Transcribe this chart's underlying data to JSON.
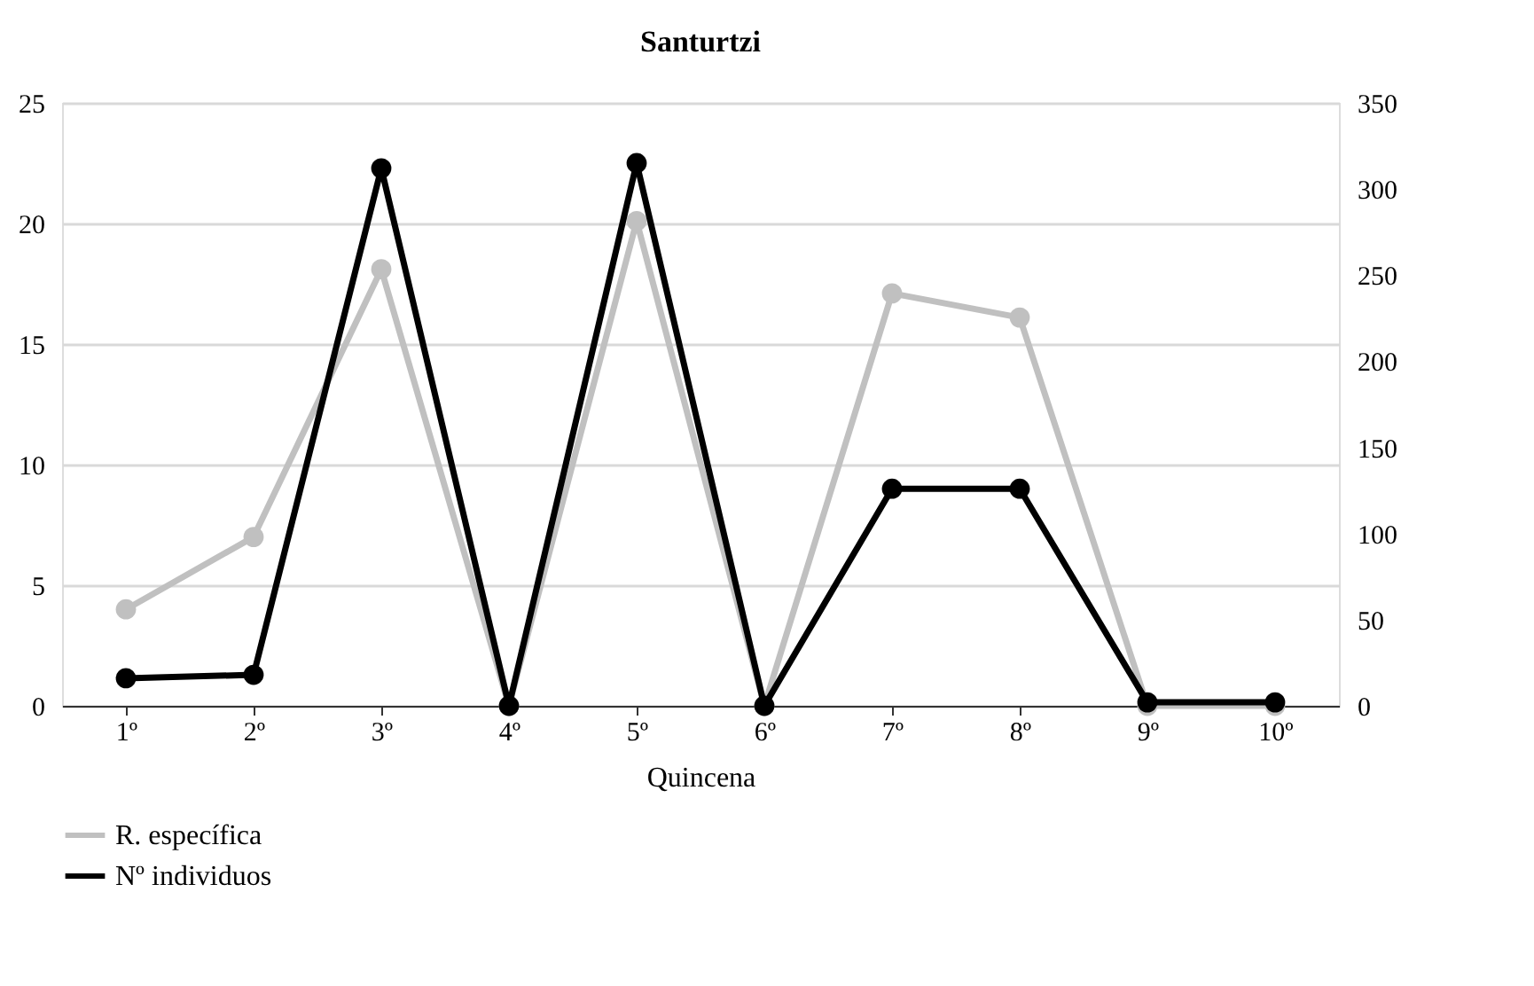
{
  "chart_data": {
    "type": "line",
    "title": "Santurtzi",
    "xlabel": "Quincena",
    "categories": [
      "1º",
      "2º",
      "3º",
      "4º",
      "5º",
      "6º",
      "7º",
      "8º",
      "9º",
      "10º"
    ],
    "series": [
      {
        "name": "R. específica",
        "color": "#c0c0c0",
        "values": [
          4,
          7,
          18.1,
          0,
          20.1,
          0,
          17.1,
          16.1,
          0,
          0
        ]
      },
      {
        "name": "Nº individuos",
        "color": "#000000",
        "axis": "y2",
        "values": [
          16,
          18,
          312,
          0,
          315,
          0,
          126,
          126,
          2,
          2
        ]
      }
    ],
    "ylim": [
      0,
      25
    ],
    "yticks": [
      0,
      5,
      10,
      15,
      20,
      25
    ],
    "y2lim": [
      0,
      350
    ],
    "y2ticks": [
      0,
      50,
      100,
      150,
      200,
      250,
      300,
      350
    ],
    "grid": "y",
    "legend": "bottom left",
    "marker": "circle",
    "line_style": "solid"
  }
}
